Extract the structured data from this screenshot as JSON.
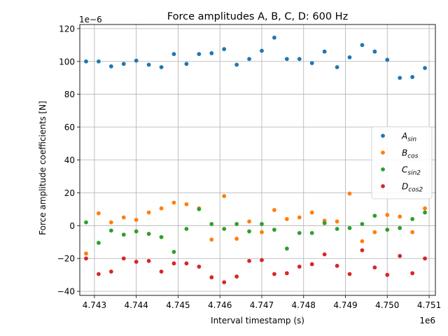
{
  "chart_data": {
    "type": "scatter",
    "title": "Force amplitudes A, B, C, D: 600 Hz",
    "xlabel": "Interval timestamp (s)",
    "ylabel": "Force amplitude coefficients [N]",
    "x_offset_label": "1e6",
    "y_offset_label": "1e−6",
    "xlim": [
      4742650,
      4751150
    ],
    "ylim": [
      -42.5,
      122.5
    ],
    "x_ticks": [
      4743000,
      4744000,
      4745000,
      4746000,
      4747000,
      4748000,
      4749000,
      4750000,
      4751000
    ],
    "x_tick_labels": [
      "4.743",
      "4.744",
      "4.745",
      "4.746",
      "4.747",
      "4.748",
      "4.749",
      "4.750",
      "4.751"
    ],
    "y_ticks": [
      -40,
      -20,
      0,
      20,
      40,
      60,
      80,
      100,
      120
    ],
    "y_tick_labels": [
      "−40",
      "−20",
      "0",
      "20",
      "40",
      "60",
      "80",
      "100",
      "120"
    ],
    "grid": true,
    "legend_position": "center-right",
    "x": [
      4742800,
      4743100,
      4743400,
      4743700,
      4744000,
      4744300,
      4744600,
      4744900,
      4745200,
      4745500,
      4745800,
      4746100,
      4746400,
      4746700,
      4747000,
      4747300,
      4747600,
      4747900,
      4748200,
      4748500,
      4748800,
      4749100,
      4749400,
      4749700,
      4750000,
      4750300,
      4750600,
      4750900
    ],
    "series": [
      {
        "name": "A_sin",
        "legend_main": "A",
        "legend_sub": "sin",
        "color": "#1f77b4",
        "values": [
          100,
          100,
          97,
          98.5,
          100.5,
          98,
          96.5,
          104.5,
          98.5,
          104.5,
          105,
          107.5,
          98,
          101.5,
          106.5,
          114.5,
          101.5,
          101.5,
          99,
          106,
          96.5,
          102.5,
          110,
          106,
          101,
          90,
          90.5,
          96
        ]
      },
      {
        "name": "B_cos",
        "legend_main": "B",
        "legend_sub": "cos",
        "color": "#ff7f0e",
        "values": [
          -17,
          7.5,
          2,
          5,
          3.5,
          8,
          10.5,
          14,
          13,
          10.5,
          -8.5,
          18,
          -8,
          2.5,
          -4,
          9.5,
          4,
          5,
          8,
          3,
          2.5,
          19.5,
          -9.5,
          -4,
          6.5,
          5.5,
          -4,
          10.5
        ]
      },
      {
        "name": "C_sin2",
        "legend_main": "C",
        "legend_sub": "sin2",
        "color": "#2ca02c",
        "values": [
          2,
          -10.5,
          -3,
          -5.5,
          -3.5,
          -5,
          -7,
          -16,
          -2,
          10,
          1,
          -2,
          1,
          -3.5,
          1,
          -2.5,
          -14,
          -4.5,
          -4.5,
          1.5,
          -2,
          -1.5,
          1,
          6,
          -2.5,
          -1.5,
          4,
          8
        ]
      },
      {
        "name": "D_cos2",
        "legend_main": "D",
        "legend_sub": "cos2",
        "color": "#d62728",
        "values": [
          -20,
          -29.5,
          -28,
          -20,
          -22,
          -21.5,
          -28,
          -23,
          -23,
          -25,
          -31.5,
          -34.5,
          -31,
          -21.5,
          -21,
          -29.5,
          -29,
          -25,
          -23.5,
          -17.5,
          -24.5,
          -29.5,
          -15,
          -25.5,
          -30,
          -18.5,
          -29,
          -20
        ]
      }
    ]
  }
}
